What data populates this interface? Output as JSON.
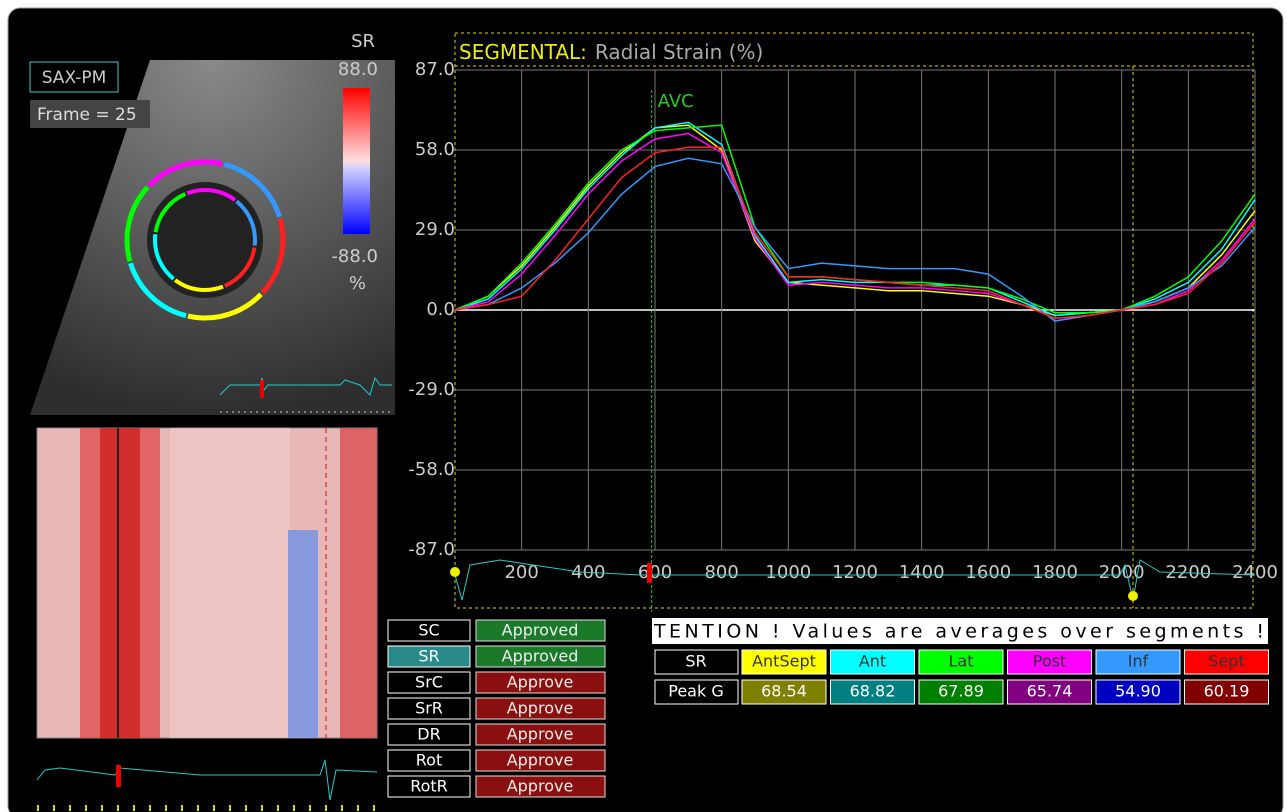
{
  "left_panel": {
    "view_label": "SAX-PM",
    "frame_label": "Frame = 25",
    "colorbar": {
      "title": "SR",
      "max_label": "88.0",
      "min_label": "-88.0",
      "unit": "%"
    }
  },
  "chart_data": {
    "type": "line",
    "title_prefix": "SEGMENTAL:",
    "title": "Radial Strain (%)",
    "annotation": {
      "label": "AVC",
      "x": 590
    },
    "x": [
      0,
      100,
      200,
      300,
      400,
      500,
      600,
      700,
      800,
      900,
      1000,
      1100,
      1200,
      1300,
      1400,
      1500,
      1600,
      1700,
      1800,
      1900,
      2000,
      2100,
      2200,
      2300,
      2400
    ],
    "series": [
      {
        "color": "#ffff00",
        "values": [
          0,
          5,
          16,
          30,
          45,
          57,
          66,
          67,
          58,
          25,
          10,
          9,
          8,
          7,
          7,
          6,
          5,
          2,
          -2,
          -1,
          0,
          3,
          8,
          20,
          36
        ]
      },
      {
        "color": "#00ffff",
        "values": [
          0,
          4,
          15,
          29,
          44,
          56,
          66,
          68,
          60,
          27,
          10,
          11,
          10,
          10,
          9,
          9,
          8,
          3,
          -2,
          -1,
          0,
          4,
          10,
          22,
          40
        ]
      },
      {
        "color": "#00ff00",
        "values": [
          0,
          5,
          17,
          31,
          46,
          58,
          65,
          66,
          67,
          30,
          12,
          12,
          11,
          10,
          10,
          9,
          8,
          4,
          -1,
          -1,
          0,
          5,
          12,
          25,
          42
        ]
      },
      {
        "color": "#ff00ff",
        "values": [
          0,
          3,
          13,
          27,
          42,
          54,
          62,
          64,
          57,
          26,
          9,
          10,
          9,
          8,
          8,
          7,
          6,
          2,
          -3,
          -2,
          0,
          2,
          7,
          18,
          33
        ]
      },
      {
        "color": "#3399ff",
        "values": [
          0,
          2,
          8,
          17,
          28,
          42,
          52,
          55,
          53,
          30,
          15,
          17,
          16,
          15,
          15,
          15,
          13,
          5,
          -4,
          -2,
          0,
          3,
          8,
          16,
          30
        ]
      },
      {
        "color": "#ff2020",
        "values": [
          0,
          2,
          5,
          18,
          33,
          48,
          57,
          59,
          59,
          28,
          12,
          12,
          11,
          10,
          9,
          8,
          7,
          2,
          -3,
          -2,
          0,
          2,
          6,
          17,
          32
        ]
      }
    ],
    "xlim": [
      0,
      2400
    ],
    "xticks": [
      200,
      400,
      600,
      800,
      1000,
      1200,
      1400,
      1600,
      1800,
      2000,
      2200,
      2400
    ],
    "ylim": [
      -87,
      87
    ],
    "yticks": [
      {
        "value": 87,
        "label": "87.0"
      },
      {
        "value": 58,
        "label": "58.0"
      },
      {
        "value": 29,
        "label": "29.0"
      },
      {
        "value": 0,
        "label": "0.0"
      },
      {
        "value": -29,
        "label": "-29.0"
      },
      {
        "value": -58,
        "label": "-58.0"
      },
      {
        "value": -87,
        "label": "-87.0"
      }
    ],
    "grid": true
  },
  "buttons": [
    {
      "label": "SC",
      "status": "Approved"
    },
    {
      "label": "SR",
      "status": "Approved"
    },
    {
      "label": "SrC",
      "status": "Approve"
    },
    {
      "label": "SrR",
      "status": "Approve"
    },
    {
      "label": "DR",
      "status": "Approve"
    },
    {
      "label": "Rot",
      "status": "Approve"
    },
    {
      "label": "RotR",
      "status": "Approve"
    }
  ],
  "results": {
    "warning": "TENTION !  Values are averages over segments !",
    "header_label": "SR",
    "row_label": "Peak G",
    "segments": [
      {
        "name": "AntSept",
        "value": "68.54",
        "color": "#ffff00",
        "dark_color": "#808000"
      },
      {
        "name": "Ant",
        "value": "68.82",
        "color": "#00ffff",
        "dark_color": "#008080"
      },
      {
        "name": "Lat",
        "value": "67.89",
        "color": "#00ff00",
        "dark_color": "#008000"
      },
      {
        "name": "Post",
        "value": "65.74",
        "color": "#ff00ff",
        "dark_color": "#800080"
      },
      {
        "name": "Inf",
        "value": "54.90",
        "color": "#3399ff",
        "dark_color": "#0000c0"
      },
      {
        "name": "Sept",
        "value": "60.19",
        "color": "#ff0000",
        "dark_color": "#800000"
      }
    ]
  }
}
